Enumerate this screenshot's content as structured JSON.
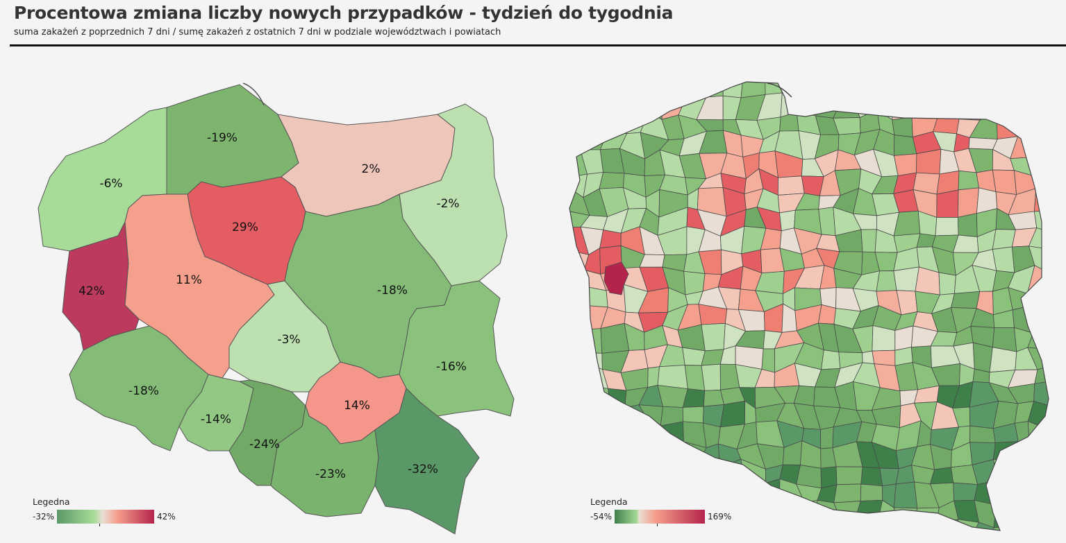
{
  "header": {
    "title": "Procentowa zmiana liczby nowych przypadków - tydzień do tygodnia",
    "subtitle": "suma zakażeń z poprzednich  7 dni / sumę zakażeń z ostatnich 7 dni w podziale województwach i powiatach"
  },
  "voivodeship_map": {
    "regions": [
      {
        "id": "zachodniopomorskie",
        "label": "-6%",
        "value": -6,
        "color": "#a6dc97"
      },
      {
        "id": "pomorskie",
        "label": "-19%",
        "value": -19,
        "color": "#7db56f"
      },
      {
        "id": "warminsko-mazurskie",
        "label": "2%",
        "value": 2,
        "color": "#eec7ba"
      },
      {
        "id": "podlaskie",
        "label": "-2%",
        "value": -2,
        "color": "#bde0b0"
      },
      {
        "id": "kujawsko-pomorskie",
        "label": "29%",
        "value": 29,
        "color": "#e35d63"
      },
      {
        "id": "lubuskie",
        "label": "42%",
        "value": 42,
        "color": "#bc3a5d"
      },
      {
        "id": "wielkopolskie",
        "label": "11%",
        "value": 11,
        "color": "#f59f8d"
      },
      {
        "id": "mazowieckie",
        "label": "-18%",
        "value": -18,
        "color": "#84bc77"
      },
      {
        "id": "lodzkie",
        "label": "-3%",
        "value": -3,
        "color": "#bde0b0"
      },
      {
        "id": "lubelskie",
        "label": "-16%",
        "value": -16,
        "color": "#8ac27b"
      },
      {
        "id": "dolnoslaskie",
        "label": "-18%",
        "value": -18,
        "color": "#84bc77"
      },
      {
        "id": "opolskie",
        "label": "-14%",
        "value": -14,
        "color": "#92c884"
      },
      {
        "id": "slaskie",
        "label": "-24%",
        "value": -24,
        "color": "#70aa66"
      },
      {
        "id": "swietokrzyskie",
        "label": "14%",
        "value": 14,
        "color": "#f4978a"
      },
      {
        "id": "malopolskie",
        "label": "-23%",
        "value": -23,
        "color": "#79b36d"
      },
      {
        "id": "podkarpackie",
        "label": "-32%",
        "value": -32,
        "color": "#5a9867"
      }
    ],
    "legend": {
      "title": "Legedna",
      "min_label": "-32%",
      "max_label": "42%"
    }
  },
  "county_map": {
    "legend": {
      "title": "Legenda",
      "min_label": "-54%",
      "max_label": "169%"
    }
  },
  "colors": {
    "background": "#f4f4f4",
    "strongest_green": "#3f7f4a",
    "neutral": "#e8e0d6",
    "strongest_red": "#b4234a"
  }
}
